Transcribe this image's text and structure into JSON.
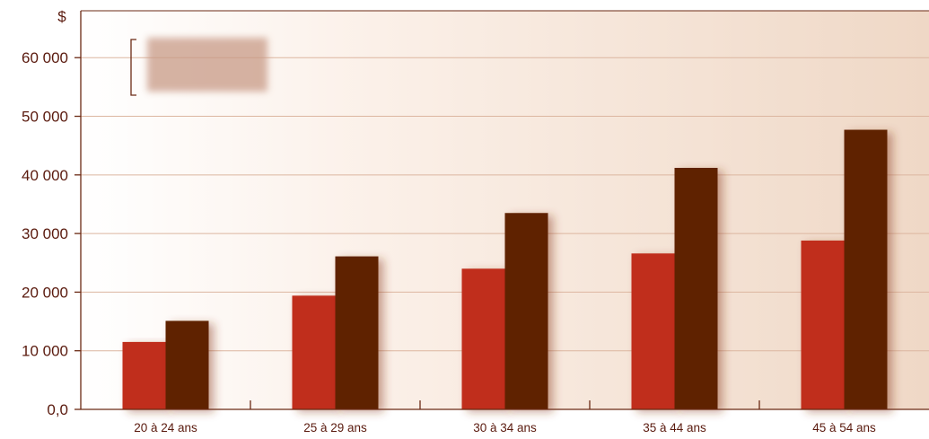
{
  "chart_data": {
    "type": "bar",
    "ylabel": "$",
    "ylim": [
      0,
      68000
    ],
    "yticks": [
      0,
      10000,
      20000,
      30000,
      40000,
      50000,
      60000
    ],
    "ytick_labels": [
      "0,0",
      "10 000",
      "20 000",
      "30 000",
      "40 000",
      "50 000",
      "60 000"
    ],
    "categories": [
      "20 à 24 ans",
      "25 à 29 ans",
      "30 à 34 ans",
      "35 à 44 ans",
      "45 à 54 ans"
    ],
    "series": [
      {
        "color": "#c02e1a",
        "values": [
          11500,
          19400,
          24000,
          26600,
          28800
        ]
      },
      {
        "color": "#5e2000",
        "values": [
          15100,
          26100,
          33500,
          41200,
          47700
        ]
      }
    ],
    "grid": true,
    "legend": "top-left"
  }
}
